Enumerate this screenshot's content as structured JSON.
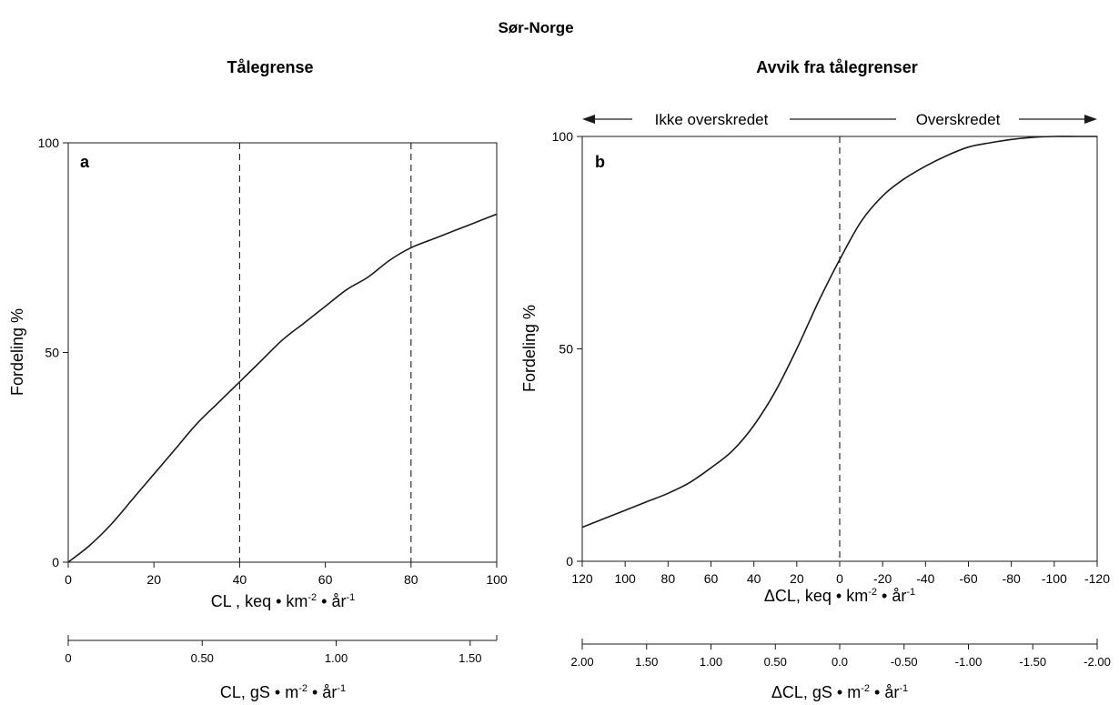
{
  "figure": {
    "title": "Sør-Norge"
  },
  "panels": [
    {
      "id": "a",
      "title": "Tålegrense",
      "letter": "a",
      "ylabel": "Fordeling %",
      "xlabel_main": "CL , keq • km",
      "xlabel_main_sup1": "-2",
      "xlabel_main_mid": " • år",
      "xlabel_main_sup2": "-1",
      "xlabel_secondary": "CL, gS • m",
      "xlabel_secondary_sup1": "-2",
      "xlabel_secondary_mid": " • år",
      "xlabel_secondary_sup2": "-1",
      "secondary_ticks": [
        "0",
        "0.50",
        "1.00",
        "1.50"
      ]
    },
    {
      "id": "b",
      "title": "Avvik fra tålegrenser",
      "letter": "b",
      "ylabel": "Fordeling %",
      "xlabel_main": "ΔCL, keq • km",
      "xlabel_main_sup1": "-2",
      "xlabel_main_mid": " • år",
      "xlabel_main_sup2": "-1",
      "xlabel_secondary": "ΔCL, gS • m",
      "xlabel_secondary_sup1": "-2",
      "xlabel_secondary_mid": " • år",
      "xlabel_secondary_sup2": "-1",
      "secondary_ticks": [
        "2.00",
        "1.50",
        "1.00",
        "0.50",
        "0.0",
        "-0.50",
        "-1.00",
        "-1.50",
        "-2.00"
      ],
      "annotation_left": "Ikke overskredet",
      "annotation_right": "Overskredet"
    }
  ],
  "chart_data": [
    {
      "type": "line",
      "panel": "a",
      "title": "Tålegrense",
      "xlabel": "CL , keq • km-2 • år-1",
      "ylabel": "Fordeling %",
      "xlim": [
        0,
        100
      ],
      "ylim": [
        0,
        100
      ],
      "x_ticks": [
        0,
        20,
        40,
        60,
        80,
        100
      ],
      "y_ticks": [
        0,
        50,
        100
      ],
      "grid": false,
      "reference_lines_x": [
        40,
        80
      ],
      "series": [
        {
          "x": [
            0,
            5,
            10,
            15,
            20,
            25,
            30,
            35,
            40,
            45,
            50,
            55,
            60,
            65,
            70,
            75,
            80,
            85,
            90,
            95,
            100
          ],
          "y": [
            0,
            4,
            9,
            15,
            21,
            27,
            33,
            38,
            43,
            48,
            53,
            57,
            61,
            65,
            68,
            72,
            75,
            77,
            79,
            81,
            83
          ]
        }
      ]
    },
    {
      "type": "line",
      "panel": "b",
      "title": "Avvik fra tålegrenser",
      "xlabel": "ΔCL, keq • km-2 • år-1",
      "ylabel": "Fordeling %",
      "xlim": [
        120,
        -120
      ],
      "ylim": [
        0,
        100
      ],
      "x_ticks": [
        120,
        100,
        80,
        60,
        40,
        20,
        0,
        -20,
        -40,
        -60,
        -80,
        -100,
        -120
      ],
      "y_ticks": [
        0,
        50,
        100
      ],
      "grid": false,
      "reference_lines_x": [
        0
      ],
      "reference_lines_y": [
        100
      ],
      "series": [
        {
          "x": [
            120,
            110,
            100,
            90,
            80,
            70,
            60,
            50,
            40,
            30,
            20,
            10,
            0,
            -10,
            -20,
            -30,
            -40,
            -50,
            -60,
            -70,
            -80,
            -90,
            -100,
            -110,
            -120
          ],
          "y": [
            8,
            10,
            12,
            14,
            16,
            18.5,
            22,
            26,
            32,
            40,
            50,
            61,
            71,
            80,
            86,
            90,
            93,
            95.5,
            97.5,
            98.5,
            99.3,
            99.8,
            100,
            100,
            100
          ]
        }
      ]
    }
  ]
}
